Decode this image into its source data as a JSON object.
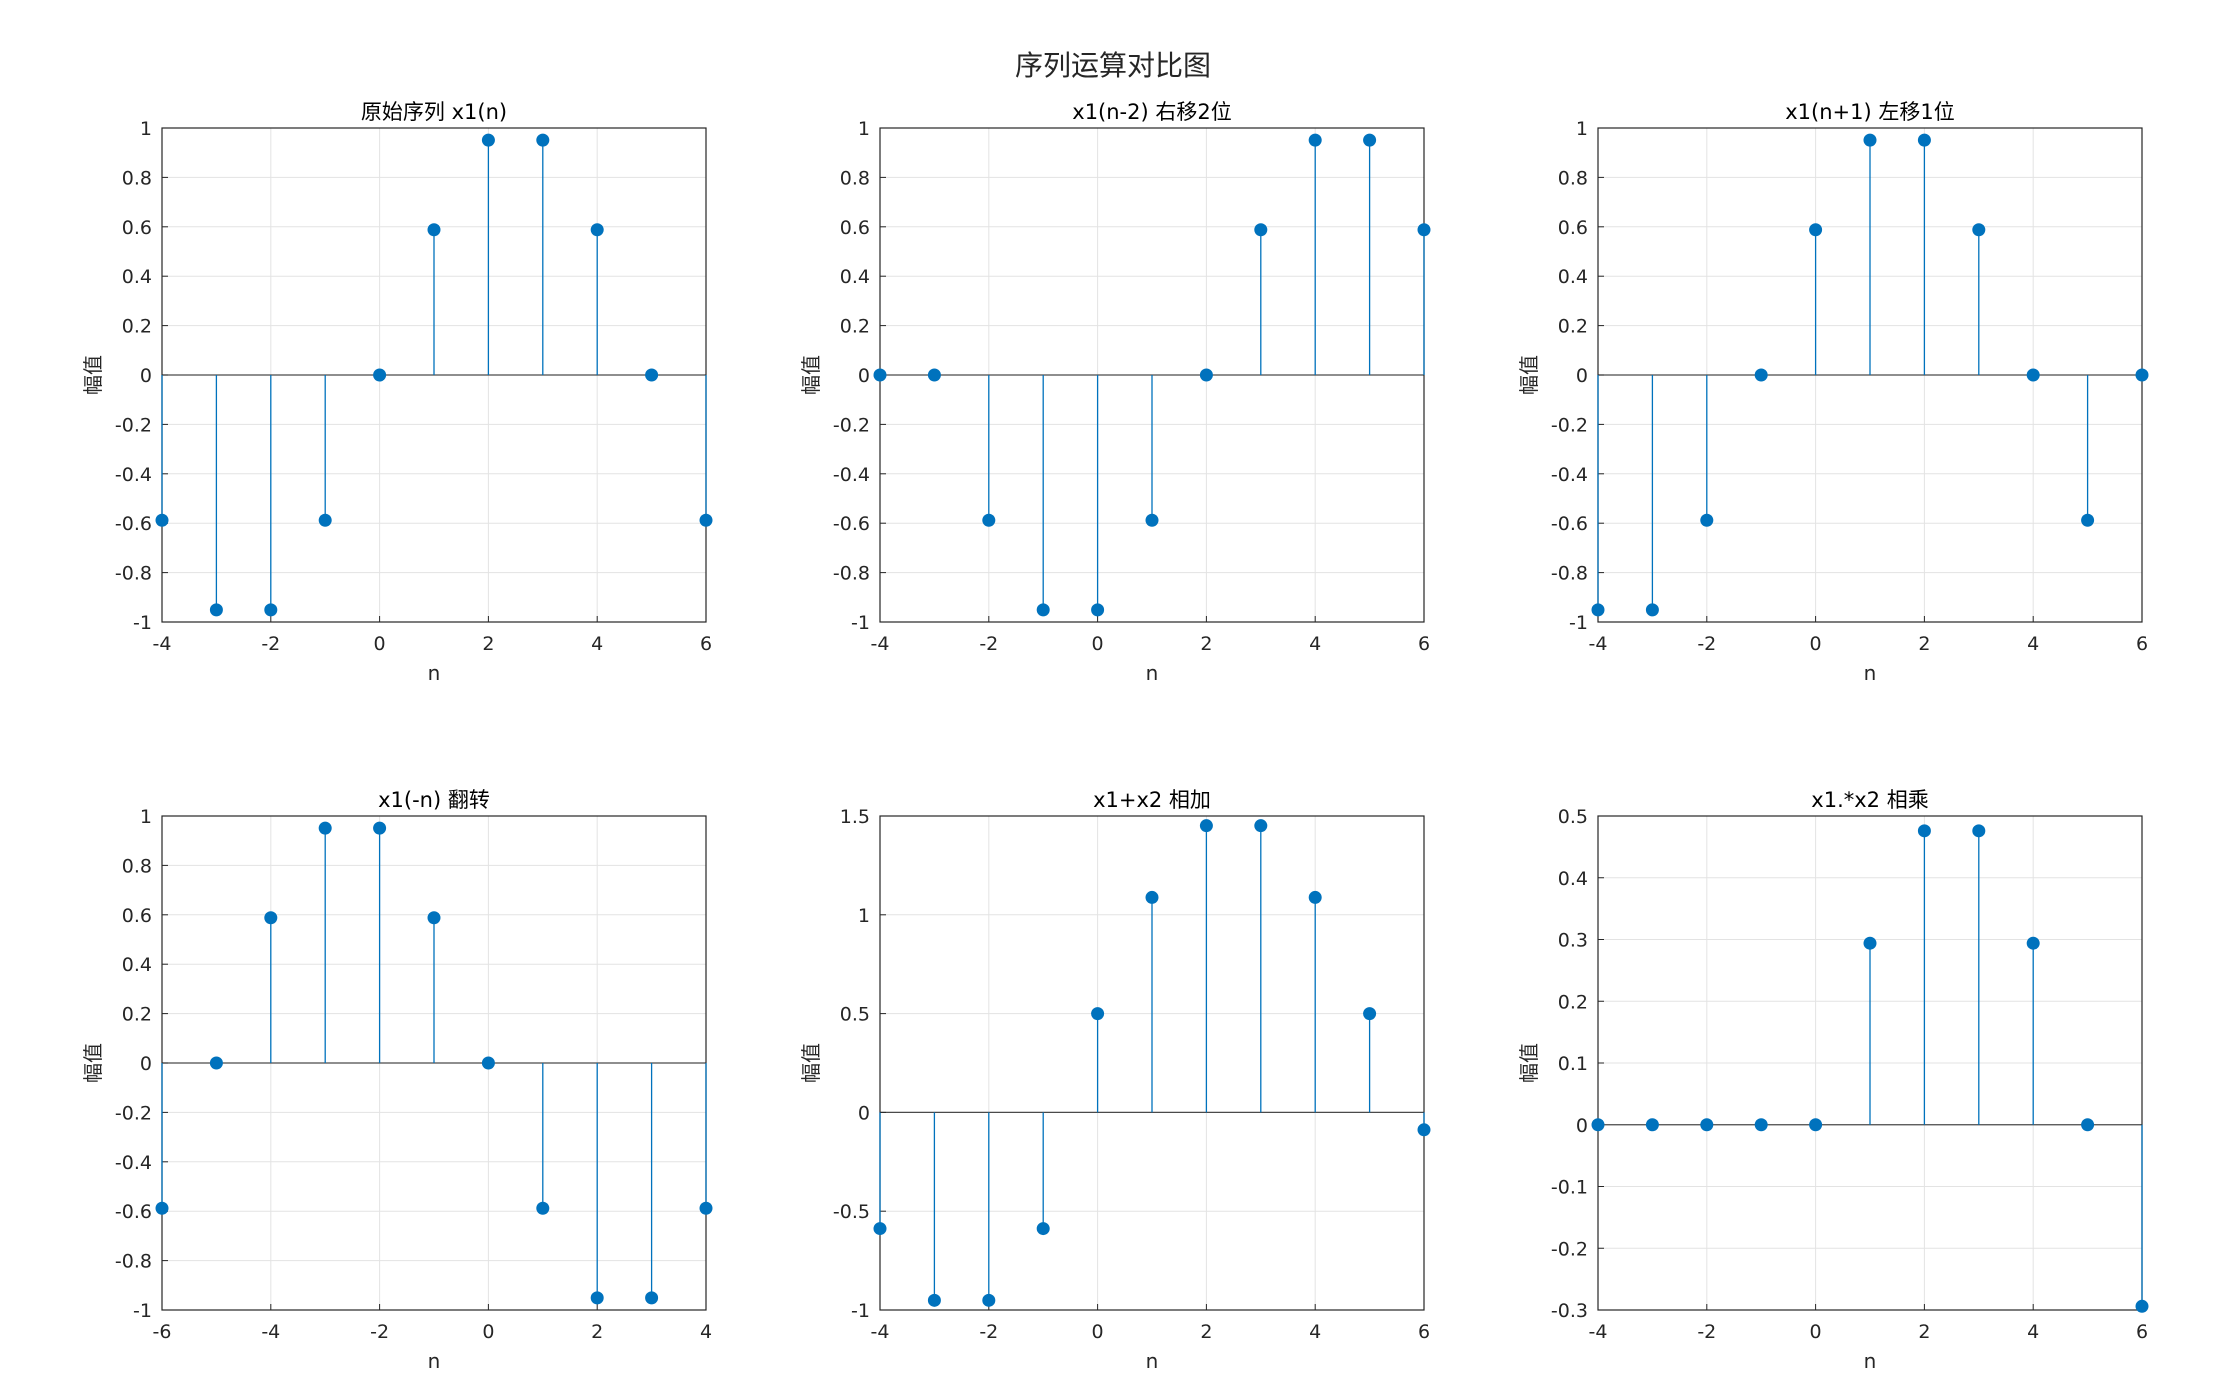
{
  "figure_title": "序列运算对比图",
  "colors": {
    "stem": "#0072BD",
    "axis": "#262626",
    "grid": "#e3e3e3"
  },
  "chart_data": [
    {
      "type": "stem",
      "title": "原始序列 x1(n)",
      "xlabel": "n",
      "ylabel": "幅值",
      "xlim": [
        -4,
        6
      ],
      "ylim": [
        -1,
        1
      ],
      "xticks": [
        -4,
        -2,
        0,
        2,
        4,
        6
      ],
      "yticks": [
        -1,
        -0.8,
        -0.6,
        -0.4,
        -0.2,
        0,
        0.2,
        0.4,
        0.6,
        0.8,
        1
      ],
      "grid": true,
      "x": [
        -4,
        -3,
        -2,
        -1,
        0,
        1,
        2,
        3,
        4,
        5,
        6
      ],
      "y": [
        -0.588,
        -0.951,
        -0.951,
        -0.588,
        0,
        0.588,
        0.951,
        0.951,
        0.588,
        0,
        -0.588
      ]
    },
    {
      "type": "stem",
      "title": "x1(n-2) 右移2位",
      "xlabel": "n",
      "ylabel": "幅值",
      "xlim": [
        -4,
        6
      ],
      "ylim": [
        -1,
        1
      ],
      "xticks": [
        -4,
        -2,
        0,
        2,
        4,
        6
      ],
      "yticks": [
        -1,
        -0.8,
        -0.6,
        -0.4,
        -0.2,
        0,
        0.2,
        0.4,
        0.6,
        0.8,
        1
      ],
      "grid": true,
      "x": [
        -4,
        -3,
        -2,
        -1,
        0,
        1,
        2,
        3,
        4,
        5,
        6
      ],
      "y": [
        0,
        0,
        -0.588,
        -0.951,
        -0.951,
        -0.588,
        0,
        0.588,
        0.951,
        0.951,
        0.588
      ]
    },
    {
      "type": "stem",
      "title": "x1(n+1) 左移1位",
      "xlabel": "n",
      "ylabel": "幅值",
      "xlim": [
        -4,
        6
      ],
      "ylim": [
        -1,
        1
      ],
      "xticks": [
        -4,
        -2,
        0,
        2,
        4,
        6
      ],
      "yticks": [
        -1,
        -0.8,
        -0.6,
        -0.4,
        -0.2,
        0,
        0.2,
        0.4,
        0.6,
        0.8,
        1
      ],
      "grid": true,
      "x": [
        -4,
        -3,
        -2,
        -1,
        0,
        1,
        2,
        3,
        4,
        5,
        6
      ],
      "y": [
        -0.951,
        -0.951,
        -0.588,
        0,
        0.588,
        0.951,
        0.951,
        0.588,
        0,
        -0.588,
        0
      ]
    },
    {
      "type": "stem",
      "title": "x1(-n) 翻转",
      "xlabel": "n",
      "ylabel": "幅值",
      "xlim": [
        -6,
        4
      ],
      "ylim": [
        -1,
        1
      ],
      "xticks": [
        -6,
        -4,
        -2,
        0,
        2,
        4
      ],
      "yticks": [
        -1,
        -0.8,
        -0.6,
        -0.4,
        -0.2,
        0,
        0.2,
        0.4,
        0.6,
        0.8,
        1
      ],
      "grid": true,
      "x": [
        -6,
        -5,
        -4,
        -3,
        -2,
        -1,
        0,
        1,
        2,
        3,
        4
      ],
      "y": [
        -0.588,
        0,
        0.588,
        0.951,
        0.951,
        0.588,
        0,
        -0.588,
        -0.951,
        -0.951,
        -0.588
      ]
    },
    {
      "type": "stem",
      "title": "x1+x2 相加",
      "xlabel": "n",
      "ylabel": "幅值",
      "xlim": [
        -4,
        6
      ],
      "ylim": [
        -1,
        1.5
      ],
      "xticks": [
        -4,
        -2,
        0,
        2,
        4,
        6
      ],
      "yticks": [
        -1,
        -0.5,
        0,
        0.5,
        1,
        1.5
      ],
      "grid": true,
      "x": [
        -4,
        -3,
        -2,
        -1,
        0,
        1,
        2,
        3,
        4,
        5,
        6
      ],
      "y": [
        -0.588,
        -0.951,
        -0.951,
        -0.588,
        0.5,
        1.088,
        1.451,
        1.451,
        1.088,
        0.5,
        -0.088
      ]
    },
    {
      "type": "stem",
      "title": "x1.*x2 相乘",
      "xlabel": "n",
      "ylabel": "幅值",
      "xlim": [
        -4,
        6
      ],
      "ylim": [
        -0.3,
        0.5
      ],
      "xticks": [
        -4,
        -2,
        0,
        2,
        4,
        6
      ],
      "yticks": [
        -0.3,
        -0.2,
        -0.1,
        0,
        0.1,
        0.2,
        0.3,
        0.4,
        0.5
      ],
      "grid": true,
      "x": [
        -4,
        -3,
        -2,
        -1,
        0,
        1,
        2,
        3,
        4,
        5,
        6
      ],
      "y": [
        0,
        0,
        0,
        0,
        0,
        0.294,
        0.476,
        0.476,
        0.294,
        0,
        -0.294
      ]
    }
  ]
}
